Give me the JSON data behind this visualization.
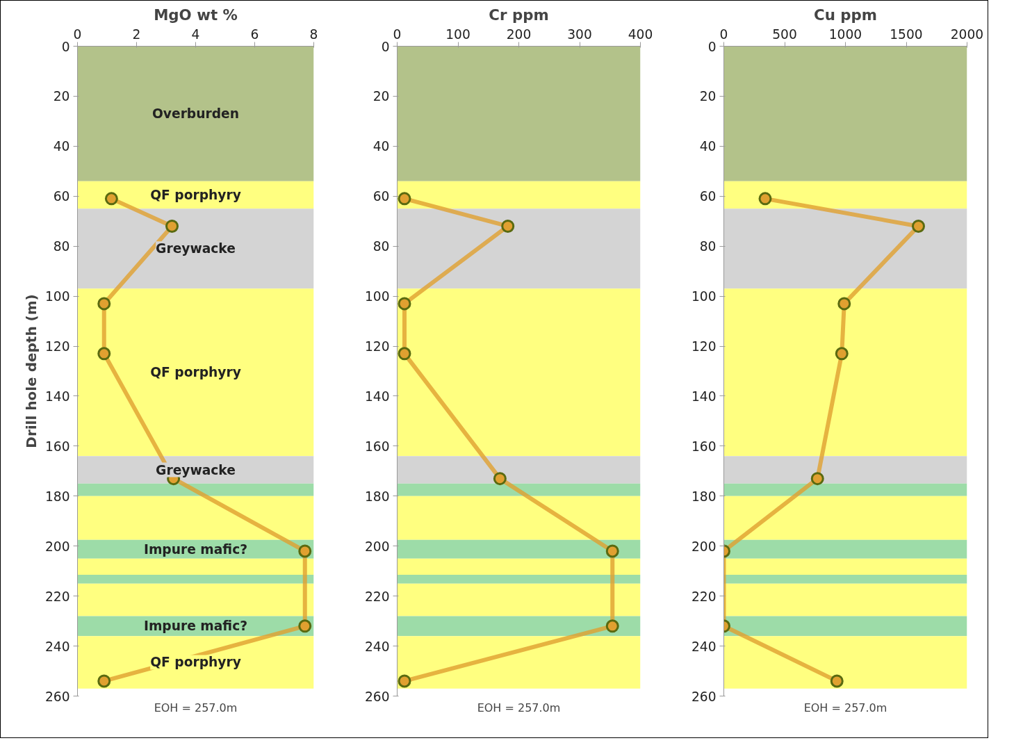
{
  "chart_data": [
    {
      "type": "line",
      "title": "MgO wt %",
      "ylabel": "Drill hole depth (m)",
      "xlim": [
        0,
        8
      ],
      "xticks": [
        0,
        2,
        4,
        6,
        8
      ],
      "ylim": [
        260,
        0
      ],
      "yticks": [
        0,
        20,
        40,
        60,
        80,
        100,
        120,
        140,
        160,
        180,
        200,
        220,
        240,
        260
      ],
      "grid": false,
      "marker": "circle",
      "line_style": "solid",
      "series": [
        {
          "color": "#e0a030",
          "x": [
            1.15,
            3.2,
            0.9,
            0.9,
            3.25,
            7.7,
            7.7,
            0.9
          ],
          "values": [
            61,
            72,
            103,
            123,
            173,
            202,
            232,
            254
          ]
        }
      ],
      "bands": [
        {
          "axis": "y",
          "from": 0,
          "to": 54,
          "label": "Overburden",
          "color": "#b3c28a"
        },
        {
          "axis": "y",
          "from": 54,
          "to": 65,
          "label": "QF porphyry",
          "color": "#ffff80"
        },
        {
          "axis": "y",
          "from": 65,
          "to": 97,
          "label": "Greywacke",
          "color": "#d4d4d4"
        },
        {
          "axis": "y",
          "from": 97,
          "to": 164,
          "label": "QF porphyry",
          "color": "#ffff80"
        },
        {
          "axis": "y",
          "from": 164,
          "to": 175,
          "label": "Greywacke",
          "color": "#d4d4d4"
        },
        {
          "axis": "y",
          "from": 175,
          "to": 180,
          "color": "#9ddca8"
        },
        {
          "axis": "y",
          "from": 180,
          "to": 197.5,
          "color": "#ffff80"
        },
        {
          "axis": "y",
          "from": 197.5,
          "to": 205,
          "label": "Impure mafic?",
          "color": "#9ddca8"
        },
        {
          "axis": "y",
          "from": 205,
          "to": 211.5,
          "color": "#ffff80"
        },
        {
          "axis": "y",
          "from": 211.5,
          "to": 215,
          "color": "#9ddca8"
        },
        {
          "axis": "y",
          "from": 215,
          "to": 228,
          "color": "#ffff80"
        },
        {
          "axis": "y",
          "from": 228,
          "to": 236,
          "label": "Impure mafic?",
          "color": "#9ddca8"
        },
        {
          "axis": "y",
          "from": 236,
          "to": 257,
          "label": "QF porphyry",
          "color": "#ffff80"
        }
      ],
      "annotations": [
        "EOH = 257.0m"
      ]
    },
    {
      "type": "line",
      "title": "Cr ppm",
      "xlim": [
        0,
        400
      ],
      "xticks": [
        0,
        100,
        200,
        300,
        400
      ],
      "ylim": [
        260,
        0
      ],
      "yticks": [
        0,
        20,
        40,
        60,
        80,
        100,
        120,
        140,
        160,
        180,
        200,
        220,
        240,
        260
      ],
      "grid": false,
      "marker": "circle",
      "line_style": "solid",
      "series": [
        {
          "color": "#e0a030",
          "x": [
            12,
            182,
            12,
            12,
            169,
            354,
            354,
            12
          ],
          "values": [
            61,
            72,
            103,
            123,
            173,
            202,
            232,
            254
          ]
        }
      ],
      "bands": [
        {
          "axis": "y",
          "from": 0,
          "to": 54,
          "color": "#b3c28a"
        },
        {
          "axis": "y",
          "from": 54,
          "to": 65,
          "color": "#ffff80"
        },
        {
          "axis": "y",
          "from": 65,
          "to": 97,
          "color": "#d4d4d4"
        },
        {
          "axis": "y",
          "from": 97,
          "to": 164,
          "color": "#ffff80"
        },
        {
          "axis": "y",
          "from": 164,
          "to": 175,
          "color": "#d4d4d4"
        },
        {
          "axis": "y",
          "from": 175,
          "to": 180,
          "color": "#9ddca8"
        },
        {
          "axis": "y",
          "from": 180,
          "to": 197.5,
          "color": "#ffff80"
        },
        {
          "axis": "y",
          "from": 197.5,
          "to": 205,
          "color": "#9ddca8"
        },
        {
          "axis": "y",
          "from": 205,
          "to": 211.5,
          "color": "#ffff80"
        },
        {
          "axis": "y",
          "from": 211.5,
          "to": 215,
          "color": "#9ddca8"
        },
        {
          "axis": "y",
          "from": 215,
          "to": 228,
          "color": "#ffff80"
        },
        {
          "axis": "y",
          "from": 228,
          "to": 236,
          "color": "#9ddca8"
        },
        {
          "axis": "y",
          "from": 236,
          "to": 257,
          "color": "#ffff80"
        }
      ],
      "annotations": [
        "EOH = 257.0m"
      ]
    },
    {
      "type": "line",
      "title": "Cu ppm",
      "xlim": [
        0,
        2000
      ],
      "xticks": [
        0,
        500,
        1000,
        1500,
        2000
      ],
      "ylim": [
        260,
        0
      ],
      "yticks": [
        0,
        20,
        40,
        60,
        80,
        100,
        120,
        140,
        160,
        180,
        200,
        220,
        240,
        260
      ],
      "grid": false,
      "marker": "circle",
      "line_style": "solid",
      "series": [
        {
          "color": "#e0a030",
          "x": [
            340,
            1600,
            990,
            970,
            770,
            0,
            0,
            930
          ],
          "values": [
            61,
            72,
            103,
            123,
            173,
            202,
            232,
            254
          ]
        }
      ],
      "bands": [
        {
          "axis": "y",
          "from": 0,
          "to": 54,
          "color": "#b3c28a"
        },
        {
          "axis": "y",
          "from": 54,
          "to": 65,
          "color": "#ffff80"
        },
        {
          "axis": "y",
          "from": 65,
          "to": 97,
          "color": "#d4d4d4"
        },
        {
          "axis": "y",
          "from": 97,
          "to": 164,
          "color": "#ffff80"
        },
        {
          "axis": "y",
          "from": 164,
          "to": 175,
          "color": "#d4d4d4"
        },
        {
          "axis": "y",
          "from": 175,
          "to": 180,
          "color": "#9ddca8"
        },
        {
          "axis": "y",
          "from": 180,
          "to": 197.5,
          "color": "#ffff80"
        },
        {
          "axis": "y",
          "from": 197.5,
          "to": 205,
          "color": "#9ddca8"
        },
        {
          "axis": "y",
          "from": 205,
          "to": 211.5,
          "color": "#ffff80"
        },
        {
          "axis": "y",
          "from": 211.5,
          "to": 215,
          "color": "#9ddca8"
        },
        {
          "axis": "y",
          "from": 215,
          "to": 228,
          "color": "#ffff80"
        },
        {
          "axis": "y",
          "from": 228,
          "to": 236,
          "color": "#9ddca8"
        },
        {
          "axis": "y",
          "from": 236,
          "to": 257,
          "color": "#ffff80"
        }
      ],
      "annotations": [
        "EOH = 257.0m"
      ]
    }
  ]
}
